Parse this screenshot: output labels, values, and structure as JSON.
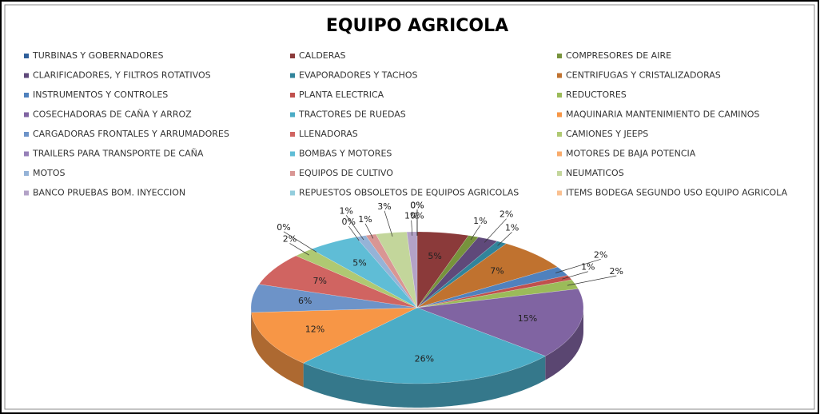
{
  "chart_data": {
    "type": "pie",
    "title": "EQUIPO AGRICOLA",
    "categories": [
      "TURBINAS Y GOBERNADORES",
      "CALDERAS",
      "COMPRESORES DE AIRE",
      "CLARIFICADORES, Y FILTROS ROTATIVOS",
      "EVAPORADORES Y TACHOS",
      "CENTRIFUGAS Y CRISTALIZADORAS",
      "INSTRUMENTOS Y CONTROLES",
      "PLANTA ELECTRICA",
      "REDUCTORES",
      "COSECHADORAS DE CAÑA Y ARROZ",
      "TRACTORES DE RUEDAS",
      "MAQUINARIA MANTENIMIENTO DE CAMINOS",
      "CARGADORAS FRONTALES Y ARRUMADORES",
      "LLENADORAS",
      "CAMIONES Y JEEPS",
      "TRAILERS PARA TRANSPORTE DE CAÑA",
      "BOMBAS Y MOTORES",
      "MOTORES  DE BAJA POTENCIA",
      "MOTOS",
      "EQUIPOS DE CULTIVO",
      "NEUMATICOS",
      "BANCO PRUEBAS BOM. INYECCION",
      "REPUESTOS OBSOLETOS DE EQUIPOS AGRICOLAS",
      "ITEMS BODEGA SEGUNDO USO EQUIPO AGRICOLA"
    ],
    "values": [
      0,
      5,
      1,
      2,
      1,
      7,
      2,
      1,
      2,
      15,
      26,
      12,
      6,
      7,
      2,
      0,
      5,
      0,
      1,
      1,
      3,
      1,
      0,
      0
    ],
    "value_labels": [
      "0%",
      "5%",
      "1%",
      "2%",
      "1%",
      "7%",
      "2%",
      "1%",
      "2%",
      "15%",
      "26%",
      "12%",
      "6%",
      "7%",
      "2%",
      "0%",
      "5%",
      "0%",
      "1%",
      "1%",
      "3%",
      "1%",
      "0%",
      "0%"
    ],
    "colors": [
      "#2f5f9a",
      "#8b3a3a",
      "#77933c",
      "#5f497a",
      "#31849b",
      "#c0722f",
      "#4f81bd",
      "#c0504d",
      "#9bbb59",
      "#8064a2",
      "#4bacc6",
      "#f79646",
      "#6d93c8",
      "#d06461",
      "#afc972",
      "#9680b8",
      "#5fbdd6",
      "#f9ab6b",
      "#95b3d7",
      "#d99694",
      "#c3d69b",
      "#b3a2c7",
      "#93cddd",
      "#fac090"
    ],
    "legend": "top"
  }
}
